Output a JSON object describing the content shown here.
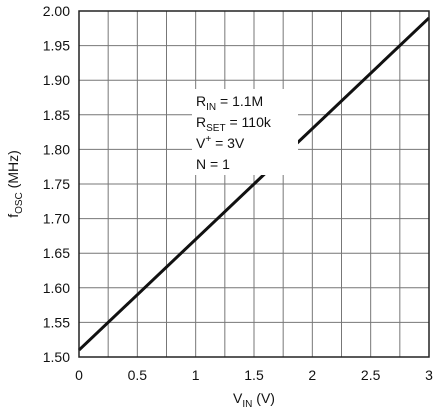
{
  "chart_data": {
    "type": "line",
    "title": "",
    "xlabel": {
      "main": "V",
      "sub": "IN",
      "rest": " (V)"
    },
    "ylabel": {
      "main": "f",
      "sub": "OSC",
      "rest": " (MHz)"
    },
    "xlim": [
      0,
      3
    ],
    "ylim": [
      1.5,
      2.0
    ],
    "grid": true,
    "x_ticks": [
      "0",
      "0.5",
      "1",
      "1.5",
      "2",
      "2.5",
      "3"
    ],
    "y_ticks": [
      "1.50",
      "1.55",
      "1.60",
      "1.65",
      "1.70",
      "1.75",
      "1.80",
      "1.85",
      "1.90",
      "1.95",
      "2.00"
    ],
    "x_grid_values": [
      0,
      0.25,
      0.5,
      0.75,
      1,
      1.25,
      1.5,
      1.75,
      2,
      2.25,
      2.5,
      2.75,
      3
    ],
    "y_grid_values": [
      1.5,
      1.55,
      1.6,
      1.65,
      1.7,
      1.75,
      1.8,
      1.85,
      1.9,
      1.95,
      2.0
    ],
    "series": [
      {
        "x": [
          0,
          3
        ],
        "y": [
          1.51,
          1.99
        ],
        "color": "#111111"
      }
    ],
    "annotations": [
      {
        "main": "R",
        "sub": "IN",
        "sup": "",
        "rest": " = 1.1M"
      },
      {
        "main": "R",
        "sub": "SET",
        "sup": "",
        "rest": " = 110k"
      },
      {
        "main": "V",
        "sub": "",
        "sup": "+",
        "rest": " = 3V"
      },
      {
        "main": "N = 1",
        "sub": "",
        "sup": "",
        "rest": ""
      }
    ]
  }
}
